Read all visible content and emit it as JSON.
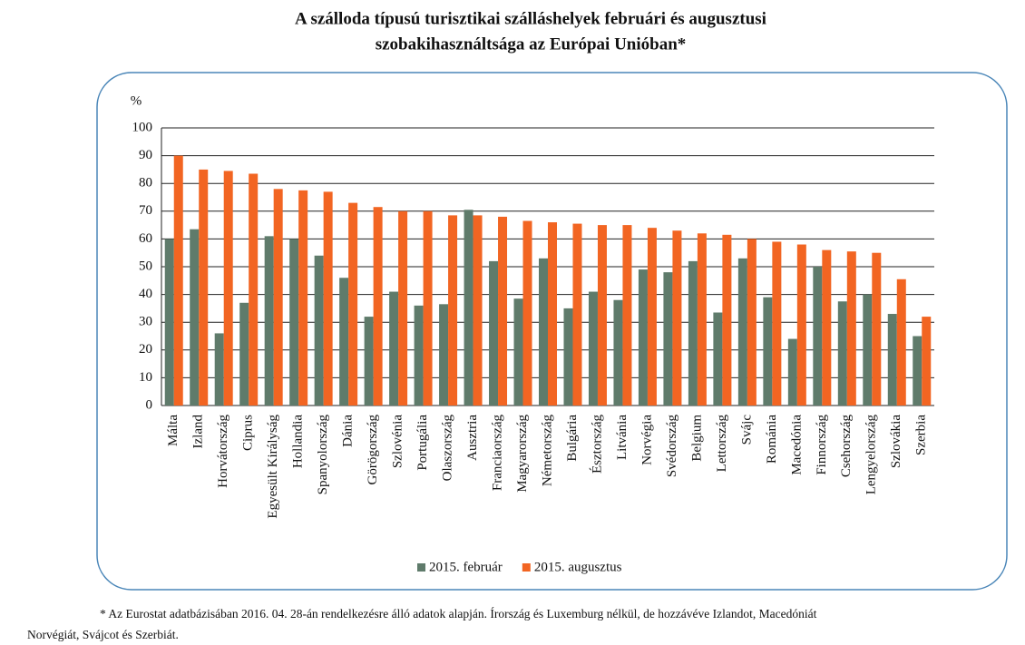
{
  "chart_data": {
    "type": "bar",
    "title": [
      "A szálloda típusú turisztikai szálláshelyek februári és augusztusi",
      "szobakihasználtsága az Európai Unióban*"
    ],
    "y_label": "%",
    "categories": [
      "Málta",
      "Izland",
      "Horvátország",
      "Ciprus",
      "Egyesült Királyság",
      "Hollandia",
      "Spanyolország",
      "Dánia",
      "Görögország",
      "Szlovénia",
      "Portugália",
      "Olaszország",
      "Ausztria",
      "Franciaország",
      "Magyarország",
      "Németország",
      "Bulgária",
      "Észtország",
      "Litvánia",
      "Norvégia",
      "Svédország",
      "Belgium",
      "Lettország",
      "Svájc",
      "Románia",
      "Macedónia",
      "Finnország",
      "Csehország",
      "Lengyelország",
      "Szlovákia",
      "Szerbia"
    ],
    "series": [
      {
        "name": "2015. február",
        "color": "#5f7b6b",
        "values": [
          60,
          63.5,
          26,
          37,
          61,
          60,
          54,
          46,
          32,
          41,
          36,
          36.5,
          70.5,
          52,
          38.5,
          53,
          35,
          41,
          38,
          49,
          48,
          52,
          33.5,
          53,
          39,
          24,
          50,
          37.5,
          40,
          33,
          25
        ]
      },
      {
        "name": "2015. augusztus",
        "color": "#f26522",
        "values": [
          90,
          85,
          84.5,
          83.5,
          78,
          77.5,
          77,
          73,
          71.5,
          70,
          70,
          68.5,
          68.5,
          68,
          66.5,
          66,
          65.5,
          65,
          65,
          64,
          63,
          62,
          61.5,
          60,
          59,
          58,
          56,
          55.5,
          55,
          45.5,
          32
        ]
      }
    ],
    "ylim": [
      0,
      100
    ],
    "yticks": [
      0,
      10,
      20,
      30,
      40,
      50,
      60,
      70,
      80,
      90,
      100
    ],
    "grid": true,
    "legend": "bottom",
    "footnote": [
      "* Az Eurostat adatbázisában 2016. 04. 28-án rendelkezésre álló adatok alapján. Írország és Luxemburg nélkül, de hozzávéve Izlandot, Macedóniát",
      "Norvégiát, Svájcot és Szerbiát."
    ]
  }
}
